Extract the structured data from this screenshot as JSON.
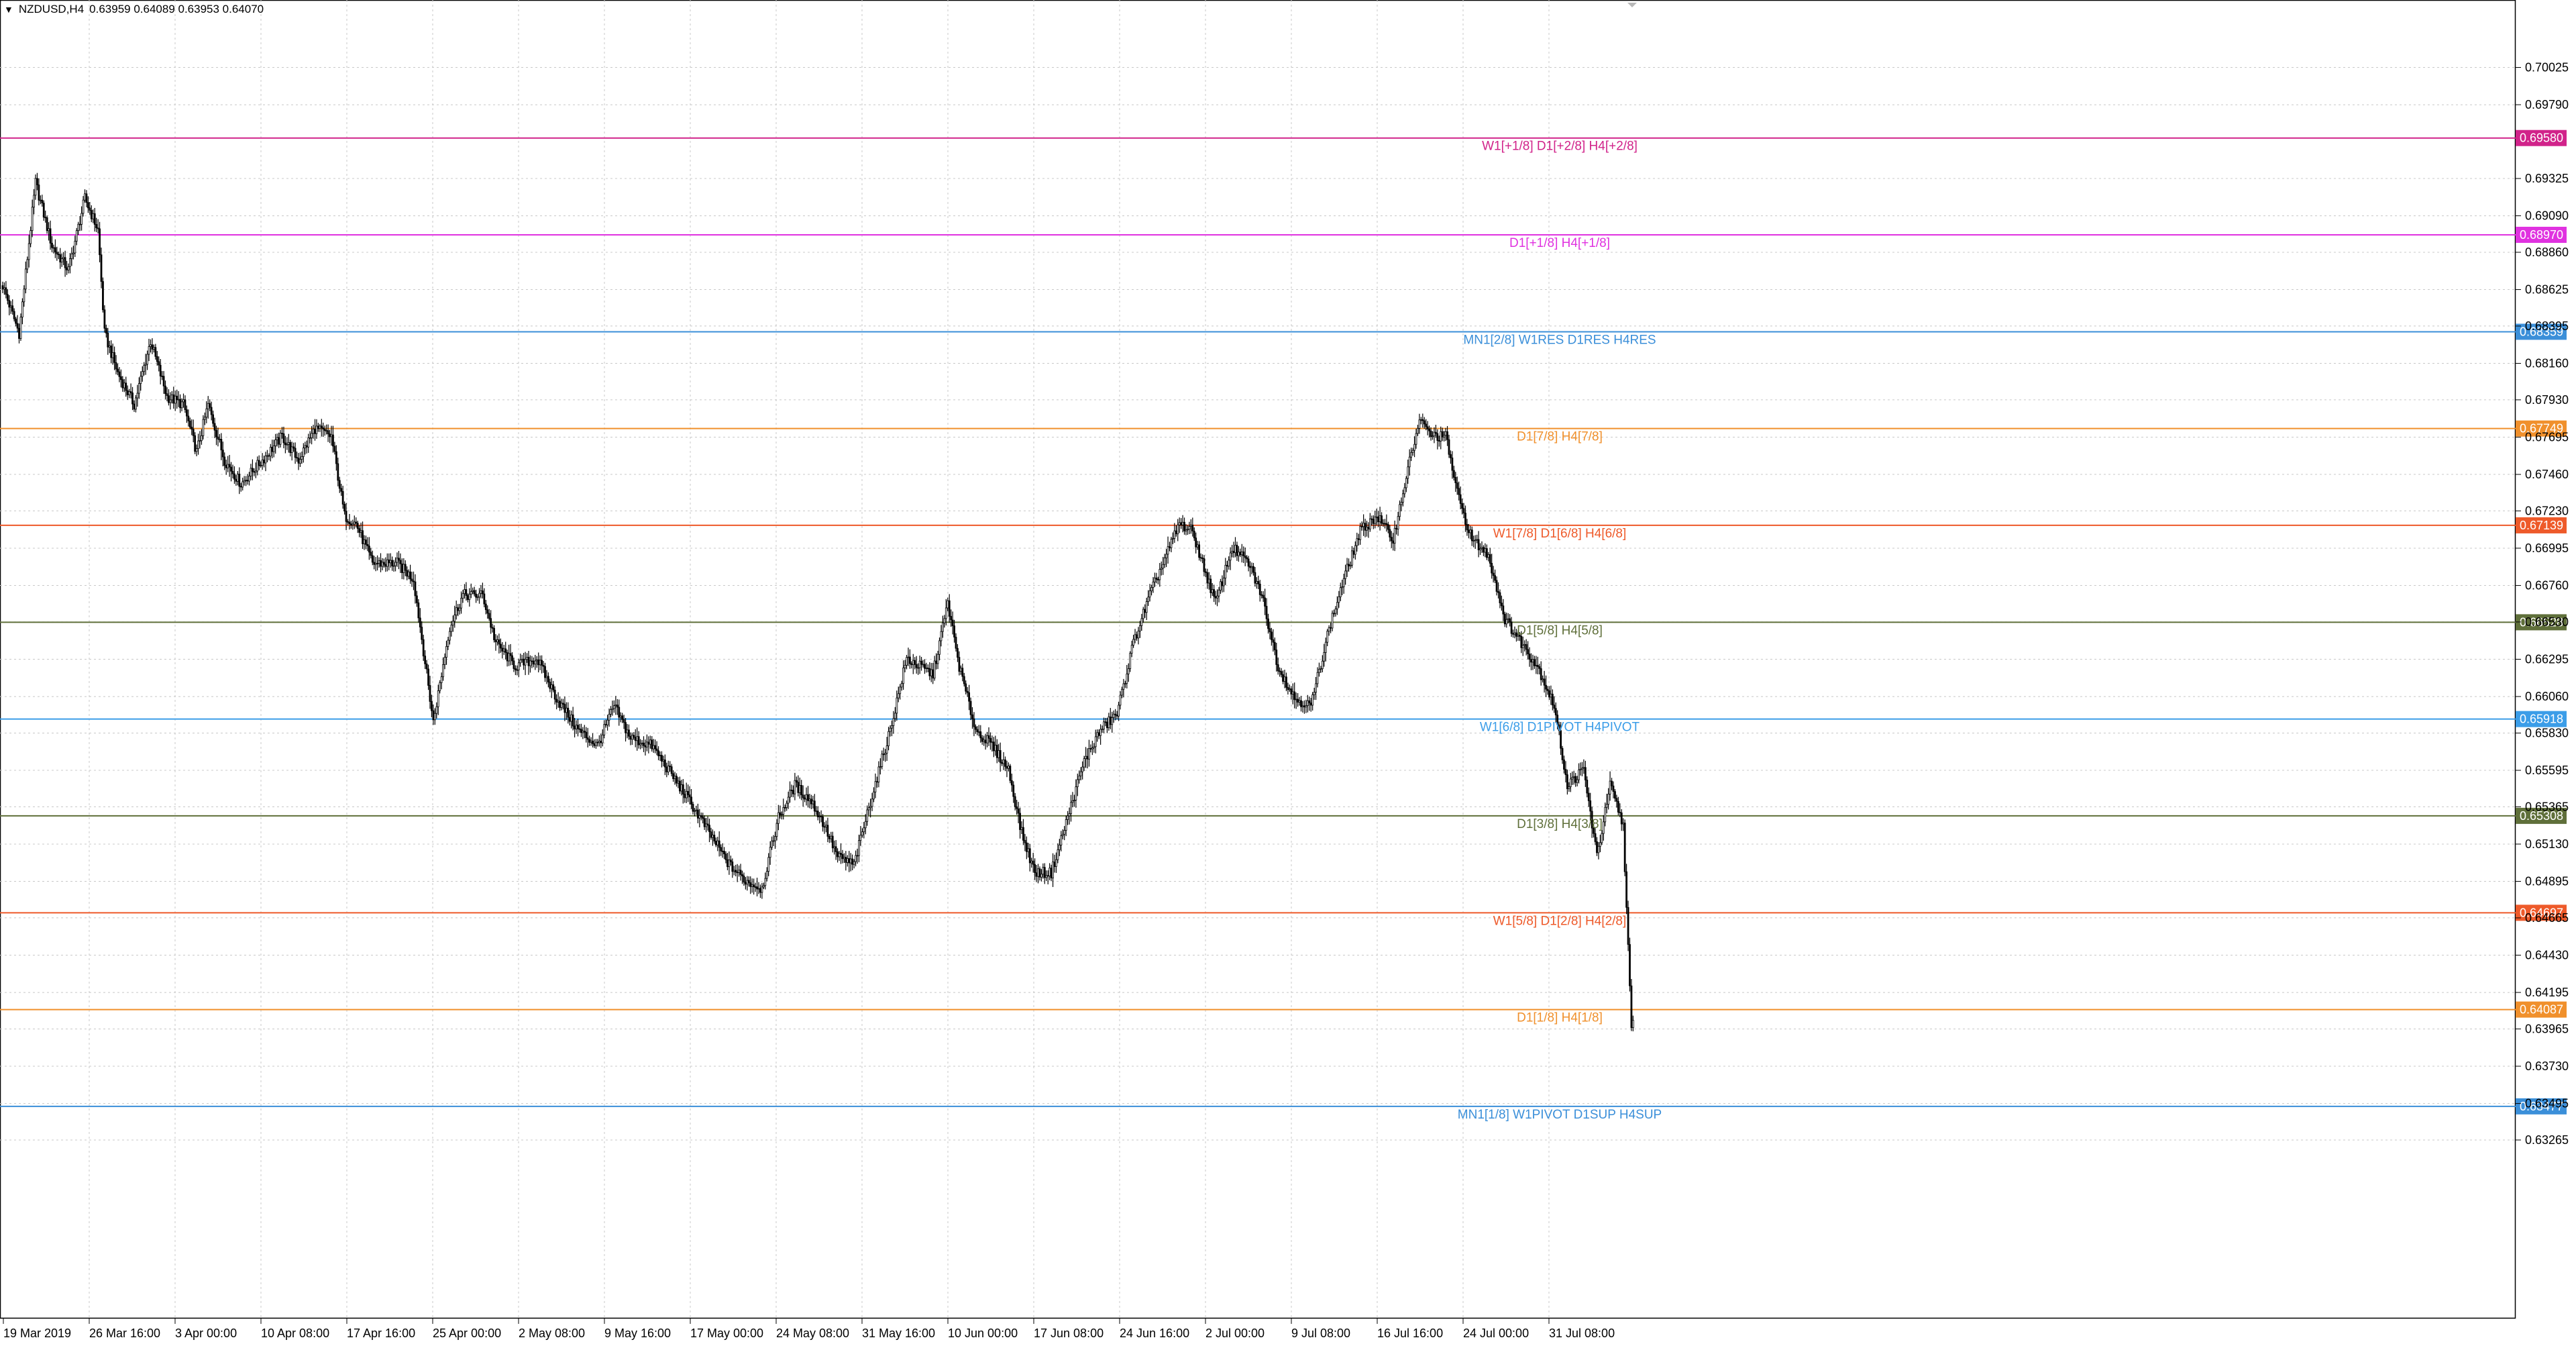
{
  "header": {
    "symbol_timeframe": "NZDUSD,H4",
    "ohlc": "0.63959 0.64089 0.63953 0.64070",
    "menu_arrow_icon": "triangle-down-icon"
  },
  "chart_data": {
    "type": "candlestick",
    "symbol": "NZDUSD",
    "timeframe": "H4",
    "ylim": [
      0.6214,
      0.7045
    ],
    "grid": true,
    "y_ticks": [
      "0.70025",
      "0.69790",
      "0.69325",
      "0.69090",
      "0.68860",
      "0.68625",
      "0.68395",
      "0.68160",
      "0.67930",
      "0.67695",
      "0.67460",
      "0.67230",
      "0.66995",
      "0.66760",
      "0.66530",
      "0.66295",
      "0.66060",
      "0.65830",
      "0.65595",
      "0.65365",
      "0.65130",
      "0.64895",
      "0.64665",
      "0.64430",
      "0.64195",
      "0.63965",
      "0.63730",
      "0.63495",
      "0.63265"
    ],
    "x_ticks": [
      "19 Mar 2019",
      "26 Mar 16:00",
      "3 Apr 00:00",
      "10 Apr 08:00",
      "17 Apr 16:00",
      "25 Apr 00:00",
      "2 May 08:00",
      "9 May 16:00",
      "17 May 00:00",
      "24 May 08:00",
      "31 May 16:00",
      "10 Jun 00:00",
      "17 Jun 08:00",
      "24 Jun 16:00",
      "2 Jul 00:00",
      "9 Jul 08:00",
      "16 Jul 16:00",
      "24 Jul 00:00",
      "31 Jul 08:00"
    ],
    "price_path": [
      [
        0,
        0.6865
      ],
      [
        10,
        0.6835
      ],
      [
        20,
        0.693
      ],
      [
        30,
        0.689
      ],
      [
        40,
        0.6875
      ],
      [
        50,
        0.692
      ],
      [
        58,
        0.69
      ],
      [
        62,
        0.6835
      ],
      [
        70,
        0.681
      ],
      [
        80,
        0.679
      ],
      [
        90,
        0.683
      ],
      [
        100,
        0.6795
      ],
      [
        110,
        0.679
      ],
      [
        118,
        0.676
      ],
      [
        125,
        0.679
      ],
      [
        135,
        0.6755
      ],
      [
        145,
        0.674
      ],
      [
        158,
        0.6755
      ],
      [
        170,
        0.677
      ],
      [
        180,
        0.6755
      ],
      [
        190,
        0.6775
      ],
      [
        200,
        0.677
      ],
      [
        208,
        0.672
      ],
      [
        215,
        0.6715
      ],
      [
        225,
        0.669
      ],
      [
        240,
        0.669
      ],
      [
        250,
        0.668
      ],
      [
        262,
        0.659
      ],
      [
        272,
        0.665
      ],
      [
        280,
        0.667
      ],
      [
        292,
        0.667
      ],
      [
        300,
        0.664
      ],
      [
        312,
        0.6625
      ],
      [
        325,
        0.663
      ],
      [
        337,
        0.6605
      ],
      [
        350,
        0.6585
      ],
      [
        362,
        0.6575
      ],
      [
        372,
        0.66
      ],
      [
        382,
        0.658
      ],
      [
        395,
        0.6575
      ],
      [
        405,
        0.656
      ],
      [
        418,
        0.654
      ],
      [
        430,
        0.652
      ],
      [
        442,
        0.65
      ],
      [
        452,
        0.649
      ],
      [
        462,
        0.6485
      ],
      [
        472,
        0.653
      ],
      [
        482,
        0.655
      ],
      [
        492,
        0.654
      ],
      [
        500,
        0.6525
      ],
      [
        508,
        0.6505
      ],
      [
        518,
        0.65
      ],
      [
        528,
        0.654
      ],
      [
        540,
        0.6585
      ],
      [
        550,
        0.663
      ],
      [
        558,
        0.6625
      ],
      [
        566,
        0.662
      ],
      [
        575,
        0.6665
      ],
      [
        582,
        0.6625
      ],
      [
        592,
        0.6585
      ],
      [
        602,
        0.6575
      ],
      [
        612,
        0.656
      ],
      [
        620,
        0.652
      ],
      [
        628,
        0.6495
      ],
      [
        638,
        0.6495
      ],
      [
        648,
        0.653
      ],
      [
        658,
        0.6565
      ],
      [
        668,
        0.6585
      ],
      [
        678,
        0.6595
      ],
      [
        688,
        0.664
      ],
      [
        698,
        0.667
      ],
      [
        708,
        0.6695
      ],
      [
        716,
        0.6715
      ],
      [
        724,
        0.671
      ],
      [
        730,
        0.669
      ],
      [
        738,
        0.6665
      ],
      [
        748,
        0.67
      ],
      [
        758,
        0.669
      ],
      [
        766,
        0.667
      ],
      [
        776,
        0.6625
      ],
      [
        786,
        0.6605
      ],
      [
        796,
        0.66
      ],
      [
        806,
        0.6645
      ],
      [
        816,
        0.668
      ],
      [
        826,
        0.671
      ],
      [
        836,
        0.672
      ],
      [
        846,
        0.6705
      ],
      [
        854,
        0.6745
      ],
      [
        862,
        0.678
      ],
      [
        870,
        0.677
      ],
      [
        878,
        0.677
      ],
      [
        886,
        0.673
      ],
      [
        894,
        0.6705
      ],
      [
        904,
        0.6695
      ],
      [
        914,
        0.6655
      ],
      [
        924,
        0.664
      ],
      [
        934,
        0.6625
      ],
      [
        944,
        0.66
      ],
      [
        952,
        0.655
      ],
      [
        962,
        0.656
      ],
      [
        970,
        0.6505
      ],
      [
        978,
        0.655
      ],
      [
        986,
        0.6525
      ],
      [
        991,
        0.6395
      ],
      [
        992,
        0.6402
      ]
    ],
    "levels": [
      {
        "price": "0.69580",
        "label": "W1[+1/8] D1[+2/8] H4[+2/8]",
        "color": "#d1238a"
      },
      {
        "price": "0.68970",
        "label": "D1[+1/8] H4[+1/8]",
        "color": "#e032e0"
      },
      {
        "price": "0.68359",
        "label": "MN1[2/8] W1RES D1RES H4RES",
        "color": "#3b8fd9"
      },
      {
        "price": "0.67749",
        "label": "D1[7/8] H4[7/8]",
        "color": "#f0902c"
      },
      {
        "price": "0.67139",
        "label": "W1[7/8] D1[6/8] H4[6/8]",
        "color": "#ee5a2a"
      },
      {
        "price": "0.66528",
        "label": "D1[5/8] H4[5/8]",
        "color": "#5f6f3a"
      },
      {
        "price": "0.65918",
        "label": "W1[6/8] D1PIVOT H4PIVOT",
        "color": "#3b9de8"
      },
      {
        "price": "0.65308",
        "label": "D1[3/8] H4[3/8]",
        "color": "#5f6f3a"
      },
      {
        "price": "0.64697",
        "label": "W1[5/8] D1[2/8] H4[2/8]",
        "color": "#ee5a2a"
      },
      {
        "price": "0.64087",
        "label": "D1[1/8] H4[1/8]",
        "color": "#f0902c"
      },
      {
        "price": "0.63477",
        "label": "MN1[1/8] W1PIVOT D1SUP H4SUP",
        "color": "#3b8fd9"
      }
    ]
  }
}
